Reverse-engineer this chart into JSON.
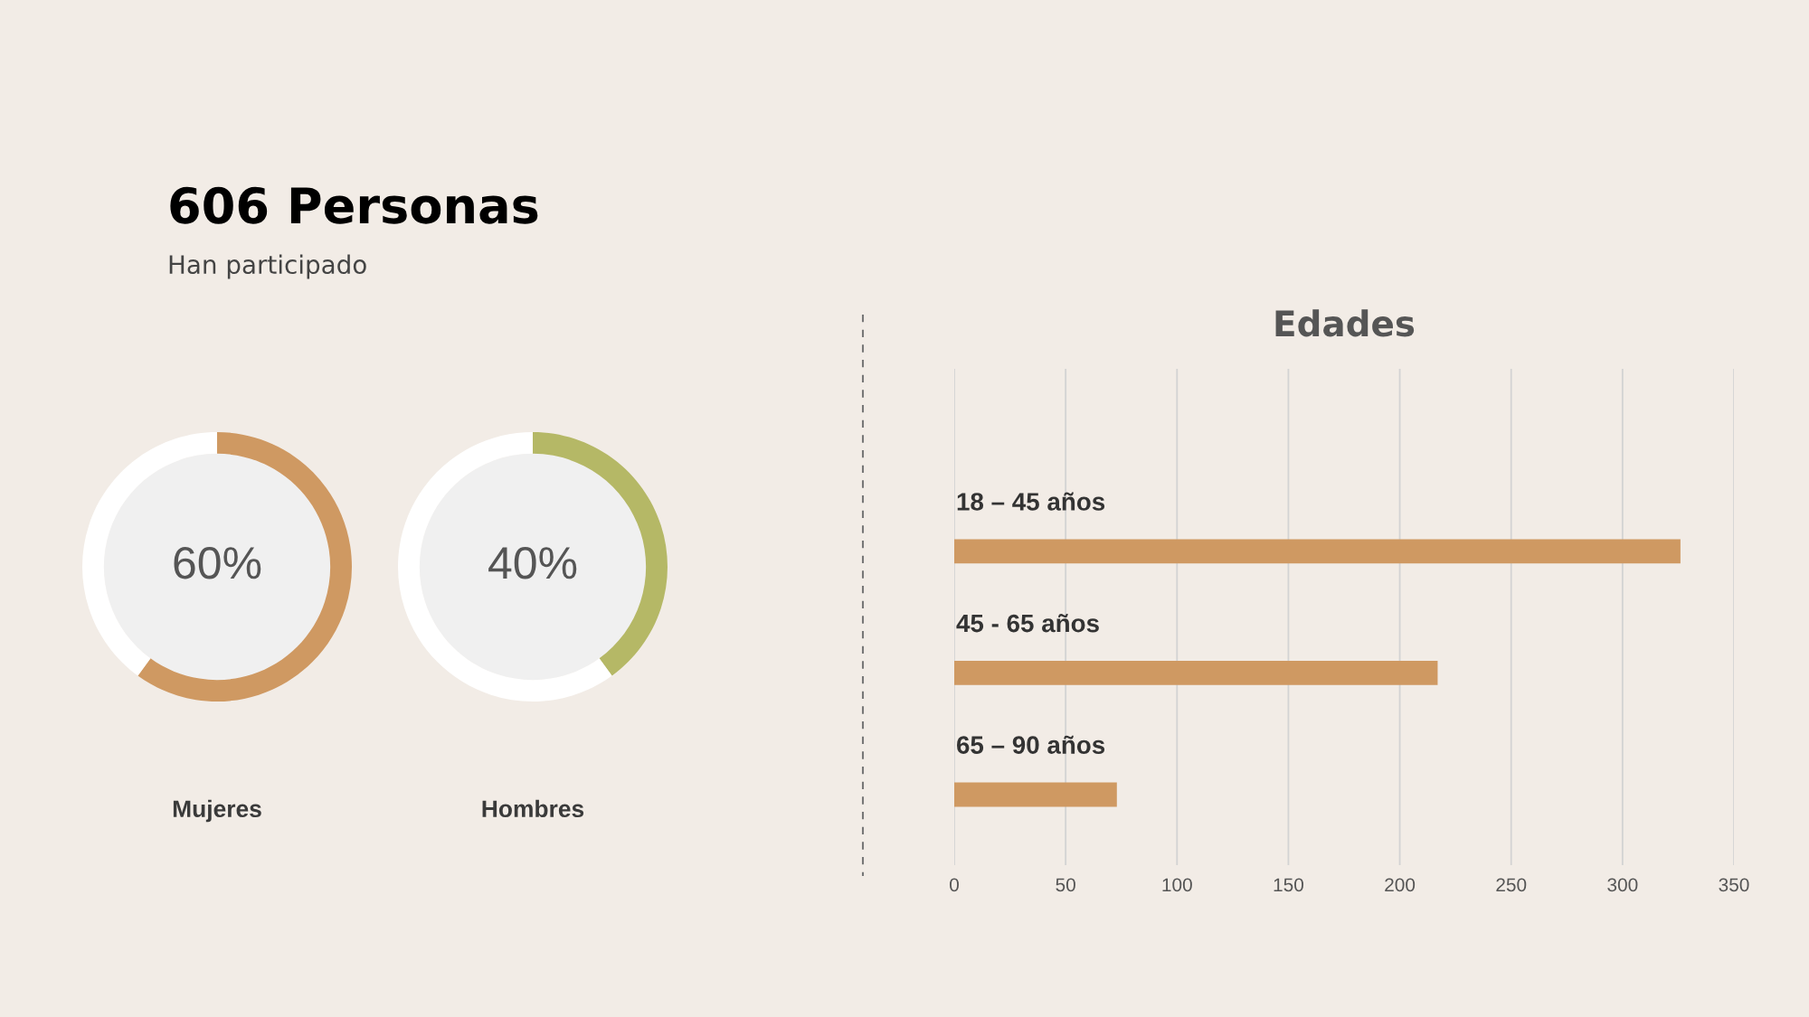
{
  "chart_data": [
    {
      "type": "other",
      "title": "606 Personas",
      "subtitle": "Han participado"
    },
    {
      "type": "donut",
      "title": "Mujeres",
      "categories": [
        null,
        null
      ],
      "values": [
        60,
        40
      ],
      "colors": [
        "#cf9962",
        "#ffffff"
      ],
      "value_labels": [
        "60%",
        null
      ]
    },
    {
      "type": "donut",
      "title": "Hombres",
      "categories": [
        null,
        null
      ],
      "values": [
        40,
        60
      ],
      "colors": [
        "#b5b866",
        "#ffffff"
      ],
      "value_labels": [
        "40%",
        null
      ]
    },
    {
      "type": "bar",
      "orientation": "horizontal",
      "title": "Edades",
      "categories": [
        "18 – 45 años",
        "45 - 65 años",
        "65 – 90 años"
      ],
      "values": [
        326,
        217,
        73
      ],
      "color": "#cf9962",
      "xlim": [
        0,
        350
      ],
      "xticks": [
        0,
        50,
        100,
        150,
        200,
        250,
        300,
        350
      ],
      "grid": "x"
    }
  ]
}
